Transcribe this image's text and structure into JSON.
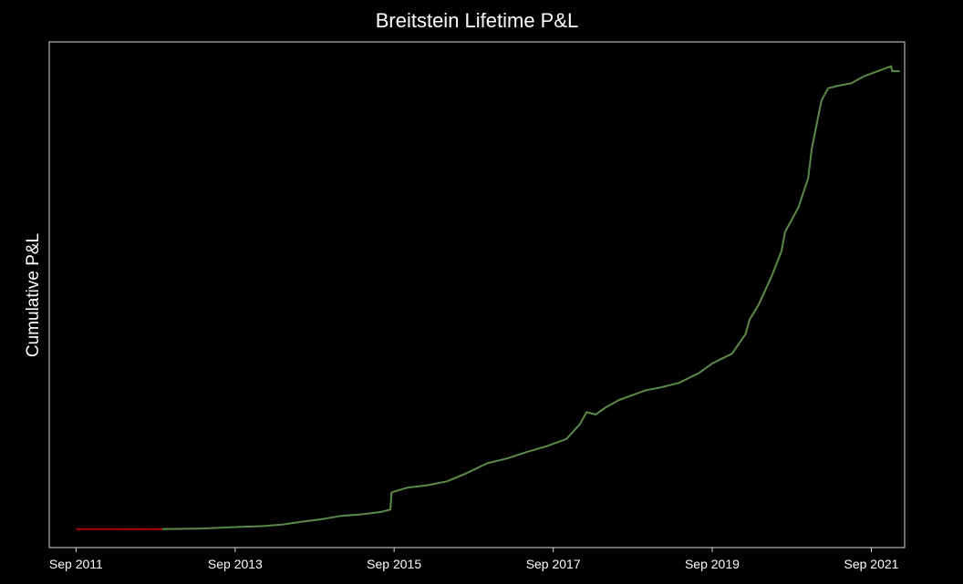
{
  "chart_data": {
    "type": "line",
    "title": "Breitstein Lifetime P&L",
    "xlabel": "",
    "ylabel": "Cumulative P&L",
    "y_tick_labels": [],
    "grid": false,
    "legend": "none",
    "background_color": "#000000",
    "frame_color": "#d8d8d8",
    "text_color": "#ffffff",
    "x_ticks": [
      "2011-09-01",
      "2013-09-01",
      "2015-09-01",
      "2017-09-01",
      "2019-09-01",
      "2021-09-01"
    ],
    "x_tick_labels": [
      "Sep 2011",
      "Sep 2013",
      "Sep 2015",
      "Sep 2017",
      "Sep 2019",
      "Sep 2021"
    ],
    "xlim": [
      "2011-05-01",
      "2022-02-01"
    ],
    "ylim": [
      -3.8,
      100
    ],
    "series": [
      {
        "color": "#b30000",
        "x": [
          "2011-09-01",
          "2012-01-01",
          "2012-05-01",
          "2012-10-01"
        ],
        "y": [
          0.0,
          0.0,
          -0.05,
          0.0
        ]
      },
      {
        "color": "#5b8a48",
        "x": [
          "2012-10-01",
          "2013-04-01",
          "2013-09-01",
          "2014-01-01",
          "2014-04-01",
          "2014-07-01",
          "2014-10-01",
          "2015-01-01",
          "2015-04-01",
          "2015-07-01",
          "2015-08-15",
          "2015-08-20",
          "2015-11-01",
          "2016-02-01",
          "2016-05-01",
          "2016-08-01",
          "2016-11-01",
          "2017-02-01",
          "2017-05-01",
          "2017-08-01",
          "2017-11-01",
          "2018-01-01",
          "2018-02-01",
          "2018-03-15",
          "2018-05-01",
          "2018-07-01",
          "2018-09-01",
          "2018-11-01",
          "2019-01-01",
          "2019-04-01",
          "2019-07-01",
          "2019-09-01",
          "2019-12-01",
          "2020-02-01",
          "2020-02-20",
          "2020-04-01",
          "2020-06-01",
          "2020-07-15",
          "2020-08-01",
          "2020-10-01",
          "2020-11-15",
          "2020-12-01",
          "2021-01-15",
          "2021-02-15",
          "2021-04-01",
          "2021-06-01",
          "2021-08-01",
          "2021-10-01",
          "2021-12-01",
          "2021-12-05",
          "2022-01-10"
        ],
        "y": [
          0.0,
          0.1,
          0.4,
          0.6,
          0.9,
          1.5,
          2.0,
          2.7,
          3.0,
          3.5,
          4.0,
          7.5,
          8.5,
          9.0,
          9.8,
          11.5,
          13.5,
          14.5,
          15.8,
          17.0,
          18.5,
          21.5,
          24.0,
          23.5,
          25.0,
          26.5,
          27.5,
          28.5,
          29.0,
          30.0,
          32.0,
          34.0,
          36.0,
          40.0,
          43.0,
          46.0,
          52.0,
          57.0,
          61.0,
          66.0,
          72.0,
          78.0,
          88.0,
          90.5,
          91.0,
          91.5,
          93.0,
          94.0,
          95.0,
          94.0,
          94.0
        ]
      }
    ]
  }
}
